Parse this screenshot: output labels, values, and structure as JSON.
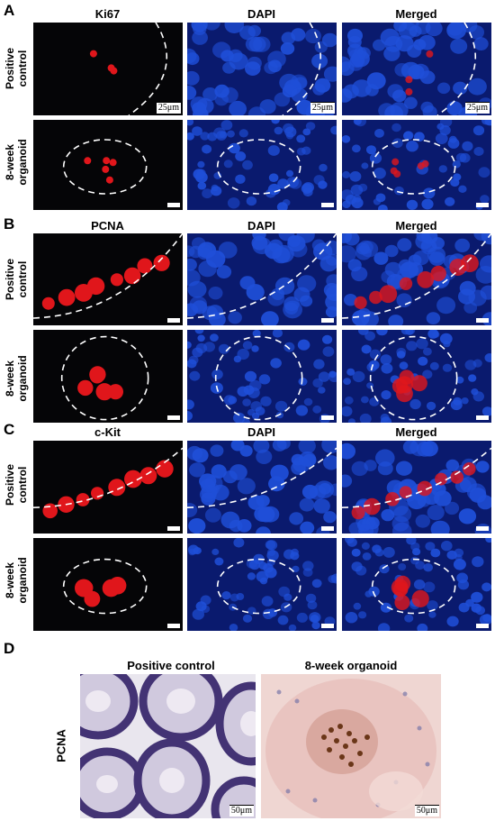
{
  "panels": {
    "A": {
      "letter": "A",
      "columns": [
        "Ki67",
        "DAPI",
        "Merged"
      ],
      "rows": [
        {
          "line1": "Positive",
          "line2": "control",
          "scalebar": "25μm"
        },
        {
          "line1": "8-week",
          "line2": "organoid",
          "scalebar": ""
        }
      ]
    },
    "B": {
      "letter": "B",
      "columns": [
        "PCNA",
        "DAPI",
        "Merged"
      ],
      "rows": [
        {
          "line1": "Positive",
          "line2": "control"
        },
        {
          "line1": "8-week",
          "line2": "organoid"
        }
      ]
    },
    "C": {
      "letter": "C",
      "columns": [
        "c-Kit",
        "DAPI",
        "Merged"
      ],
      "rows": [
        {
          "line1": "Positive",
          "line2": "control"
        },
        {
          "line1": "8-week",
          "line2": "organoid"
        }
      ]
    },
    "D": {
      "letter": "D",
      "columns": [
        "Positive control",
        "8-week organoid"
      ],
      "row_label": "PCNA",
      "scalebar": "50μm"
    }
  },
  "colors": {
    "fluor_background": "#050507",
    "red_signal": "#e0161b",
    "dapi_blue": "#1f4fd8",
    "dapi_dark": "#0a1a6e",
    "ihc_background": "#e9e6ee",
    "ihc_nuclei": "#3b2a6e",
    "ihc_brown": "#6a3618",
    "ihc_pink": "#e7bfbc"
  }
}
